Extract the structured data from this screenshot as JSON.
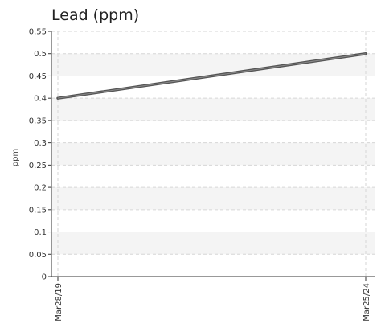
{
  "chart_data": {
    "type": "line",
    "title": "Lead (ppm)",
    "xlabel": "",
    "ylabel": "ppm",
    "x": [
      "Mar28/19",
      "Mar25/24"
    ],
    "series": [
      {
        "values": [
          0.4,
          0.5
        ]
      }
    ],
    "ylim": [
      0,
      0.55
    ],
    "y_ticks": [
      "0",
      "0.05",
      "0.1",
      "0.15",
      "0.2",
      "0.25",
      "0.3",
      "0.35",
      "0.4",
      "0.45",
      "0.5",
      "0.55"
    ],
    "grid": true,
    "line_color": "#555555",
    "band_color": "#f4f4f4"
  }
}
